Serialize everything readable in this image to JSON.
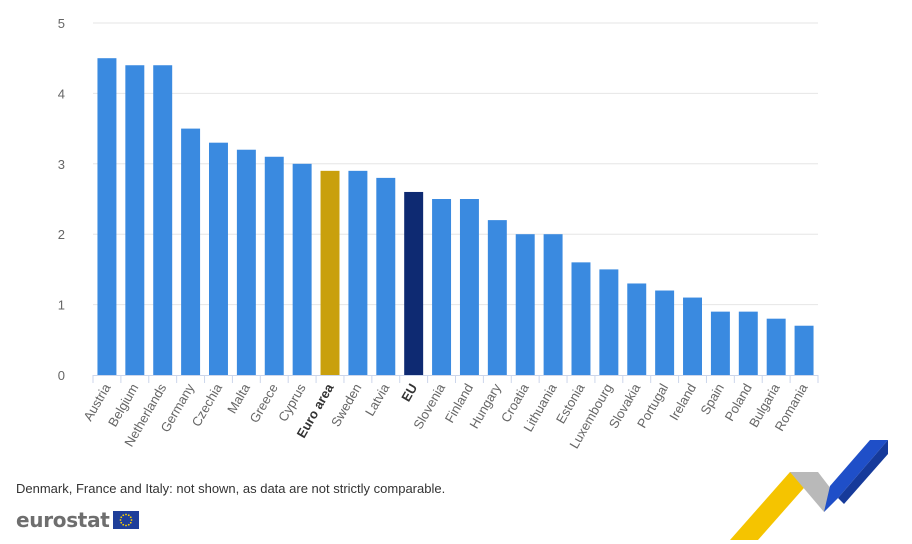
{
  "chart_data": {
    "type": "bar",
    "categories": [
      "Austria",
      "Belgium",
      "Netherlands",
      "Germany",
      "Czechia",
      "Malta",
      "Greece",
      "Cyprus",
      "Euro area",
      "Sweden",
      "Latvia",
      "EU",
      "Slovenia",
      "Finland",
      "Hungary",
      "Croatia",
      "Lithuania",
      "Estonia",
      "Luxembourg",
      "Slovakia",
      "Portugal",
      "Ireland",
      "Spain",
      "Poland",
      "Bulgaria",
      "Romania"
    ],
    "values": [
      4.5,
      4.4,
      4.4,
      3.5,
      3.3,
      3.2,
      3.1,
      3.0,
      2.9,
      2.9,
      2.8,
      2.6,
      2.5,
      2.5,
      2.2,
      2.0,
      2.0,
      1.6,
      1.5,
      1.3,
      1.2,
      1.1,
      0.9,
      0.9,
      0.8,
      0.7
    ],
    "highlight": {
      "Euro area": "#c9a00d",
      "EU": "#0e2a72"
    },
    "bold_categories": [
      "Euro area",
      "EU"
    ],
    "bar_color": "#3a8ae0",
    "ylim": [
      0,
      5
    ],
    "yticks": [
      0,
      1,
      2,
      3,
      4,
      5
    ],
    "title": "",
    "xlabel": "",
    "ylabel": "",
    "grid": true,
    "legend": "none"
  },
  "footnote": "Denmark, France and Italy: not shown, as data are not strictly comparable.",
  "logo": {
    "text": "eurostat",
    "icon": "eu-flag-icon"
  },
  "colors": {
    "grid": "#e6e6e6",
    "axis": "#ccd6eb",
    "label": "#666666",
    "deco_yellow": "#f5c400",
    "deco_blue": "#1f4fc8",
    "deco_grey": "#b0b0b0"
  }
}
